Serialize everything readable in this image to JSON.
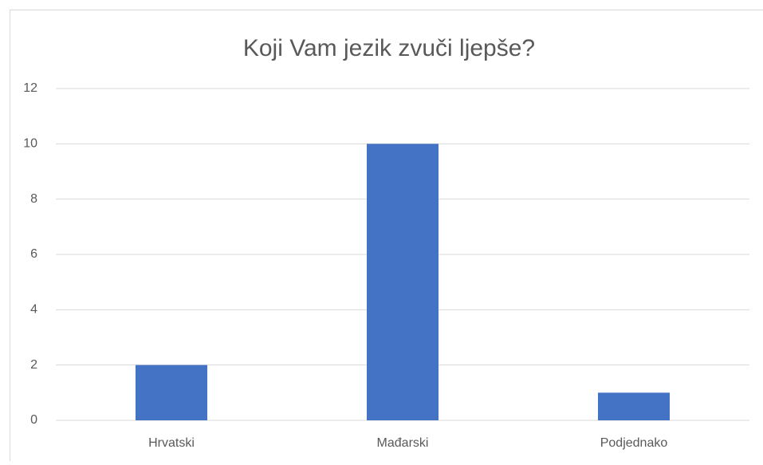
{
  "chart_data": {
    "type": "bar",
    "title": "Koji Vam jezik zvuči ljepše?",
    "categories": [
      "Hrvatski",
      "Mađarski",
      "Podjednako"
    ],
    "values": [
      2,
      10,
      1
    ],
    "color": "#4472c4",
    "ylim": [
      0,
      12
    ],
    "yticks": [
      0,
      2,
      4,
      6,
      8,
      10,
      12
    ],
    "grid": true
  }
}
